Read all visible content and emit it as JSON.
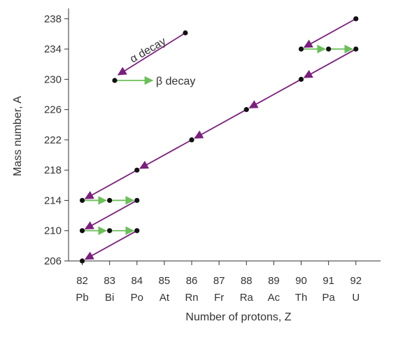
{
  "colors": {
    "alpha": "#7b1f7d",
    "beta": "#6cbf5a",
    "point": "#111111",
    "axis": "#333333",
    "grid": "#888888"
  },
  "chart_data": {
    "type": "scatter",
    "title": "",
    "xlabel": "Number of protons, Z",
    "ylabel": "Mass number, A",
    "x_ticks": [
      82,
      83,
      84,
      85,
      86,
      87,
      88,
      89,
      90,
      91,
      92
    ],
    "x_tick_elements": [
      "Pb",
      "Bi",
      "Po",
      "At",
      "Rn",
      "Fr",
      "Ra",
      "Ac",
      "Th",
      "Pa",
      "U"
    ],
    "y_ticks": [
      206,
      210,
      214,
      218,
      222,
      226,
      230,
      234,
      238
    ],
    "xlim": [
      81.5,
      92.9
    ],
    "ylim": [
      206,
      239
    ],
    "grid": false,
    "points": [
      {
        "x": 92,
        "y": 238
      },
      {
        "x": 90,
        "y": 234
      },
      {
        "x": 91,
        "y": 234
      },
      {
        "x": 92,
        "y": 234
      },
      {
        "x": 90,
        "y": 230
      },
      {
        "x": 88,
        "y": 226
      },
      {
        "x": 86,
        "y": 222
      },
      {
        "x": 84,
        "y": 218
      },
      {
        "x": 82,
        "y": 214
      },
      {
        "x": 83,
        "y": 214
      },
      {
        "x": 84,
        "y": 214
      },
      {
        "x": 82,
        "y": 210
      },
      {
        "x": 83,
        "y": 210
      },
      {
        "x": 84,
        "y": 210
      },
      {
        "x": 82,
        "y": 206
      }
    ],
    "alpha_decays": [
      {
        "from": [
          92,
          238
        ],
        "to": [
          90,
          234
        ]
      },
      {
        "from": [
          92,
          234
        ],
        "to": [
          90,
          230
        ]
      },
      {
        "from": [
          90,
          230
        ],
        "to": [
          88,
          226
        ]
      },
      {
        "from": [
          88,
          226
        ],
        "to": [
          86,
          222
        ]
      },
      {
        "from": [
          86,
          222
        ],
        "to": [
          84,
          218
        ]
      },
      {
        "from": [
          84,
          218
        ],
        "to": [
          82,
          214
        ]
      },
      {
        "from": [
          84,
          214
        ],
        "to": [
          82,
          210
        ]
      },
      {
        "from": [
          84,
          210
        ],
        "to": [
          82,
          206
        ]
      }
    ],
    "beta_decays": [
      {
        "from": [
          90,
          234
        ],
        "to": [
          91,
          234
        ]
      },
      {
        "from": [
          91,
          234
        ],
        "to": [
          92,
          234
        ]
      },
      {
        "from": [
          82,
          214
        ],
        "to": [
          83,
          214
        ]
      },
      {
        "from": [
          83,
          214
        ],
        "to": [
          84,
          214
        ]
      },
      {
        "from": [
          82,
          210
        ],
        "to": [
          83,
          210
        ]
      },
      {
        "from": [
          83,
          210
        ],
        "to": [
          84,
          210
        ]
      }
    ],
    "legend": {
      "position": "top-left",
      "alpha_label": "α decay",
      "beta_label": "β decay"
    }
  }
}
